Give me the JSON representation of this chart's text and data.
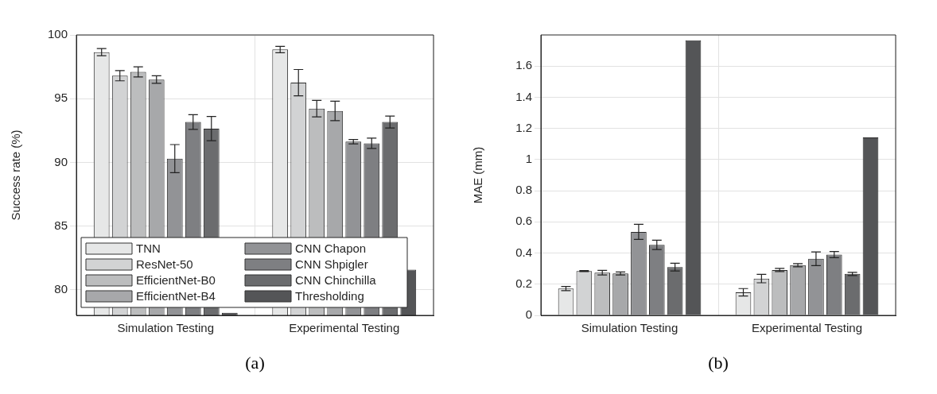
{
  "chart_data": [
    {
      "type": "bar",
      "ylabel": "Success rate (%)",
      "categories": [
        "Simulation Testing",
        "Experimental Testing"
      ],
      "ylim": [
        78,
        100
      ],
      "yticks": [
        80,
        85,
        90,
        95,
        100
      ],
      "grid": true,
      "legend": "bottom left",
      "annotations": [
        "(a)"
      ],
      "series": [
        {
          "name": "TNN",
          "color": "#e6e7e7",
          "values": [
            98.65,
            98.86
          ],
          "errors": [
            0.28,
            0.25
          ]
        },
        {
          "name": "ResNet-50",
          "color": "#d2d3d4",
          "values": [
            96.8,
            96.26
          ],
          "errors": [
            0.4,
            1.03
          ]
        },
        {
          "name": "EfficientNet-B0",
          "color": "#bcbdbe",
          "values": [
            97.1,
            94.22
          ],
          "errors": [
            0.4,
            0.65
          ]
        },
        {
          "name": "EfficientNet-B4",
          "color": "#a7a8aa",
          "values": [
            96.5,
            94.04
          ],
          "errors": [
            0.3,
            0.76
          ]
        },
        {
          "name": "CNN Chapon",
          "color": "#929396",
          "values": [
            90.3,
            91.63
          ],
          "errors": [
            1.1,
            0.17
          ]
        },
        {
          "name": "CNN Shpigler",
          "color": "#7e7f82",
          "values": [
            93.17,
            91.5
          ],
          "errors": [
            0.58,
            0.4
          ]
        },
        {
          "name": "CNN Chinchilla",
          "color": "#6b6c6e",
          "values": [
            92.65,
            93.17
          ],
          "errors": [
            0.95,
            0.47
          ]
        },
        {
          "name": "Thresholding",
          "color": "#545557",
          "values": [
            78.2,
            81.58
          ],
          "errors": [
            null,
            null
          ]
        }
      ]
    },
    {
      "type": "bar",
      "ylabel": "MAE (mm)",
      "categories": [
        "Simulation Testing",
        "Experimental Testing"
      ],
      "ylim": [
        0,
        1.8
      ],
      "yticks": [
        0,
        0.2,
        0.4,
        0.6,
        0.8,
        1,
        1.2,
        1.4,
        1.6
      ],
      "grid": true,
      "annotations": [
        "(b)"
      ],
      "series": [
        {
          "color": "#e6e7e7",
          "values": [
            0.172,
            0.148
          ],
          "errors": [
            0.013,
            0.024
          ]
        },
        {
          "color": "#d2d3d4",
          "values": [
            0.284,
            0.236
          ],
          "errors": [
            0.003,
            0.027
          ]
        },
        {
          "color": "#bcbdbe",
          "values": [
            0.274,
            0.291
          ],
          "errors": [
            0.015,
            0.01
          ]
        },
        {
          "color": "#a7a8aa",
          "values": [
            0.269,
            0.322
          ],
          "errors": [
            0.01,
            0.01
          ]
        },
        {
          "color": "#929396",
          "values": [
            0.536,
            0.363
          ],
          "errors": [
            0.048,
            0.044
          ]
        },
        {
          "color": "#7e7f82",
          "values": [
            0.453,
            0.39
          ],
          "errors": [
            0.03,
            0.02
          ]
        },
        {
          "color": "#6b6c6e",
          "values": [
            0.31,
            0.266
          ],
          "errors": [
            0.025,
            0.01
          ]
        },
        {
          "color": "#545557",
          "values": [
            1.765,
            1.142
          ],
          "errors": [
            null,
            null
          ]
        }
      ]
    }
  ]
}
